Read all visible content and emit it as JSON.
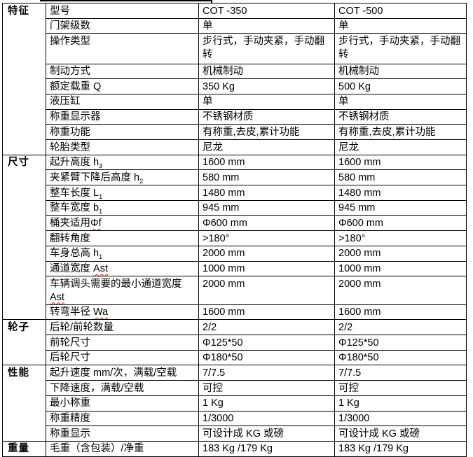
{
  "colors": {
    "background": "#ffffff",
    "text": "#000000",
    "table_border": "#000000",
    "spellcheck_wavy": "#ee1100",
    "grammar_wavy": "#3355cc"
  },
  "table": {
    "column_roles": [
      "category",
      "parameter",
      "model-1-value",
      "model-2-value"
    ],
    "models": [
      "COT -350",
      "COT -500"
    ],
    "sections": [
      {
        "category": "特征",
        "rows": [
          {
            "param": [
              {
                "t": "型号"
              }
            ],
            "v1": "COT -350",
            "v2": "COT -500"
          },
          {
            "param": [
              {
                "t": "门架级数"
              }
            ],
            "v1": "单",
            "v2": "单"
          },
          {
            "param": [
              {
                "t": "操作类型"
              }
            ],
            "v1": "步行式，手动夹紧，手动翻转",
            "v2": "步行式，手动夹紧，手动翻转",
            "tall": true
          },
          {
            "param": [
              {
                "t": "制动方式"
              }
            ],
            "v1": "机械制动",
            "v2": "机械制动"
          },
          {
            "param": [
              {
                "t": "额定载重 Q"
              }
            ],
            "v1": "350 Kg",
            "v2": "500 Kg"
          },
          {
            "param": [
              {
                "t": "液压缸"
              }
            ],
            "v1": "单",
            "v2": "单"
          },
          {
            "param": [
              {
                "t": "称重显示器"
              }
            ],
            "v1": "不锈钢材质",
            "v2": "不锈钢材质"
          },
          {
            "param": [
              {
                "t": "称重功能"
              }
            ],
            "v1": [
              {
                "t": "有称重"
              },
              {
                "t": ",",
                "wavy2": true
              },
              {
                "t": "去皮"
              },
              {
                "t": ",",
                "wavy2": true
              },
              {
                "t": "累计功能"
              }
            ],
            "v2": [
              {
                "t": "有称重"
              },
              {
                "t": ",",
                "wavy2": true
              },
              {
                "t": "去皮"
              },
              {
                "t": ",",
                "wavy2": true
              },
              {
                "t": "累计功能"
              }
            ]
          },
          {
            "param": [
              {
                "t": "轮胎类型"
              }
            ],
            "v1": "尼龙",
            "v2": "尼龙"
          }
        ]
      },
      {
        "category": "尺寸",
        "rows": [
          {
            "param": [
              {
                "t": "起升高度 h"
              },
              {
                "t": "3",
                "sub": true
              }
            ],
            "v1": "1600 mm",
            "v2": "1600 mm"
          },
          {
            "param": [
              {
                "t": "夹紧臂下降后高度 h"
              },
              {
                "t": "2",
                "sub": true
              }
            ],
            "v1": "580 mm",
            "v2": "580 mm"
          },
          {
            "param": [
              {
                "t": "整车长度 L"
              },
              {
                "t": "1",
                "sub": true
              }
            ],
            "v1": "1480 mm",
            "v2": "1480 mm"
          },
          {
            "param": [
              {
                "t": "整车宽度 b"
              },
              {
                "t": "1",
                "sub": true
              }
            ],
            "v1": "945 mm",
            "v2": "945 mm"
          },
          {
            "param": [
              {
                "t": "桶夹适用"
              },
              {
                "t": "Φf",
                "wavy": true
              }
            ],
            "v1": "Φ600 mm",
            "v2": "Φ600 mm"
          },
          {
            "param": [
              {
                "t": "翻转角度"
              }
            ],
            "v1": ">180°",
            "v2": ">180°"
          },
          {
            "param": [
              {
                "t": "车身总高 h"
              },
              {
                "t": "1",
                "sub": true
              }
            ],
            "v1": "2000 mm",
            "v2": "2000 mm"
          },
          {
            "param": [
              {
                "t": "通道宽度 "
              },
              {
                "t": "Ast",
                "wavy": true
              }
            ],
            "v1": "1000 mm",
            "v2": "1000 mm"
          },
          {
            "param": [
              {
                "t": "车辆调头需要的最小通道宽度 "
              },
              {
                "t": "Ast",
                "wavy": true
              }
            ],
            "v1": "2000 mm",
            "v2": "2000 mm"
          },
          {
            "param": [
              {
                "t": "转弯半径 "
              },
              {
                "t": "Wa",
                "wavy": true
              }
            ],
            "v1": "1600 mm",
            "v2": "1600 mm"
          }
        ]
      },
      {
        "category": "轮子",
        "rows": [
          {
            "param": [
              {
                "t": "后轮/前轮数量"
              }
            ],
            "v1": "2/2",
            "v2": "2/2"
          },
          {
            "param": [
              {
                "t": "前轮尺寸"
              }
            ],
            "v1": "Φ125*50",
            "v2": "Φ125*50"
          },
          {
            "param": [
              {
                "t": "后轮尺寸"
              }
            ],
            "v1": "Φ180*50",
            "v2": "Φ180*50"
          }
        ]
      },
      {
        "category": "性能",
        "rows": [
          {
            "param": [
              {
                "t": "起升速度 mm/次，满载/空载"
              }
            ],
            "v1": "7/7.5",
            "v2": "7/7.5"
          },
          {
            "param": [
              {
                "t": "下降速度，满载/空载"
              }
            ],
            "v1": "可控",
            "v2": "可控"
          },
          {
            "param": [
              {
                "t": "最小称重"
              }
            ],
            "v1": "1 Kg",
            "v2": "1 Kg"
          },
          {
            "param": [
              {
                "t": "称重精度"
              }
            ],
            "v1": "1/3000",
            "v2": "1/3000"
          },
          {
            "param": [
              {
                "t": "称重显示"
              }
            ],
            "v1": "可设计成 KG 或磅",
            "v2": "可设计成 KG 或磅"
          }
        ]
      },
      {
        "category": "重量",
        "rows": [
          {
            "param": [
              {
                "t": "毛重（含包装）/净重"
              }
            ],
            "v1": "183 Kg /179 Kg",
            "v2": "183 Kg /179 Kg"
          }
        ]
      }
    ]
  }
}
